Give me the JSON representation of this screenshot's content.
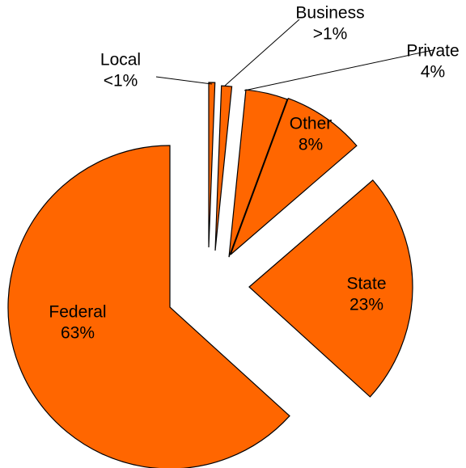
{
  "chart_data": {
    "type": "pie",
    "exploded": true,
    "slice_color": "#FF6600",
    "slices": [
      {
        "name": "Federal",
        "value": 63,
        "value_label": "63%"
      },
      {
        "name": "State",
        "value": 23,
        "value_label": "23%"
      },
      {
        "name": "Other",
        "value": 8,
        "value_label": "8%"
      },
      {
        "name": "Private",
        "value": 4,
        "value_label": "4%"
      },
      {
        "name": "Business",
        "value": 1,
        "value_label": ">1%"
      },
      {
        "name": "Local",
        "value": 0.6,
        "value_label": "<1%"
      }
    ],
    "legend": "none",
    "title": ""
  }
}
